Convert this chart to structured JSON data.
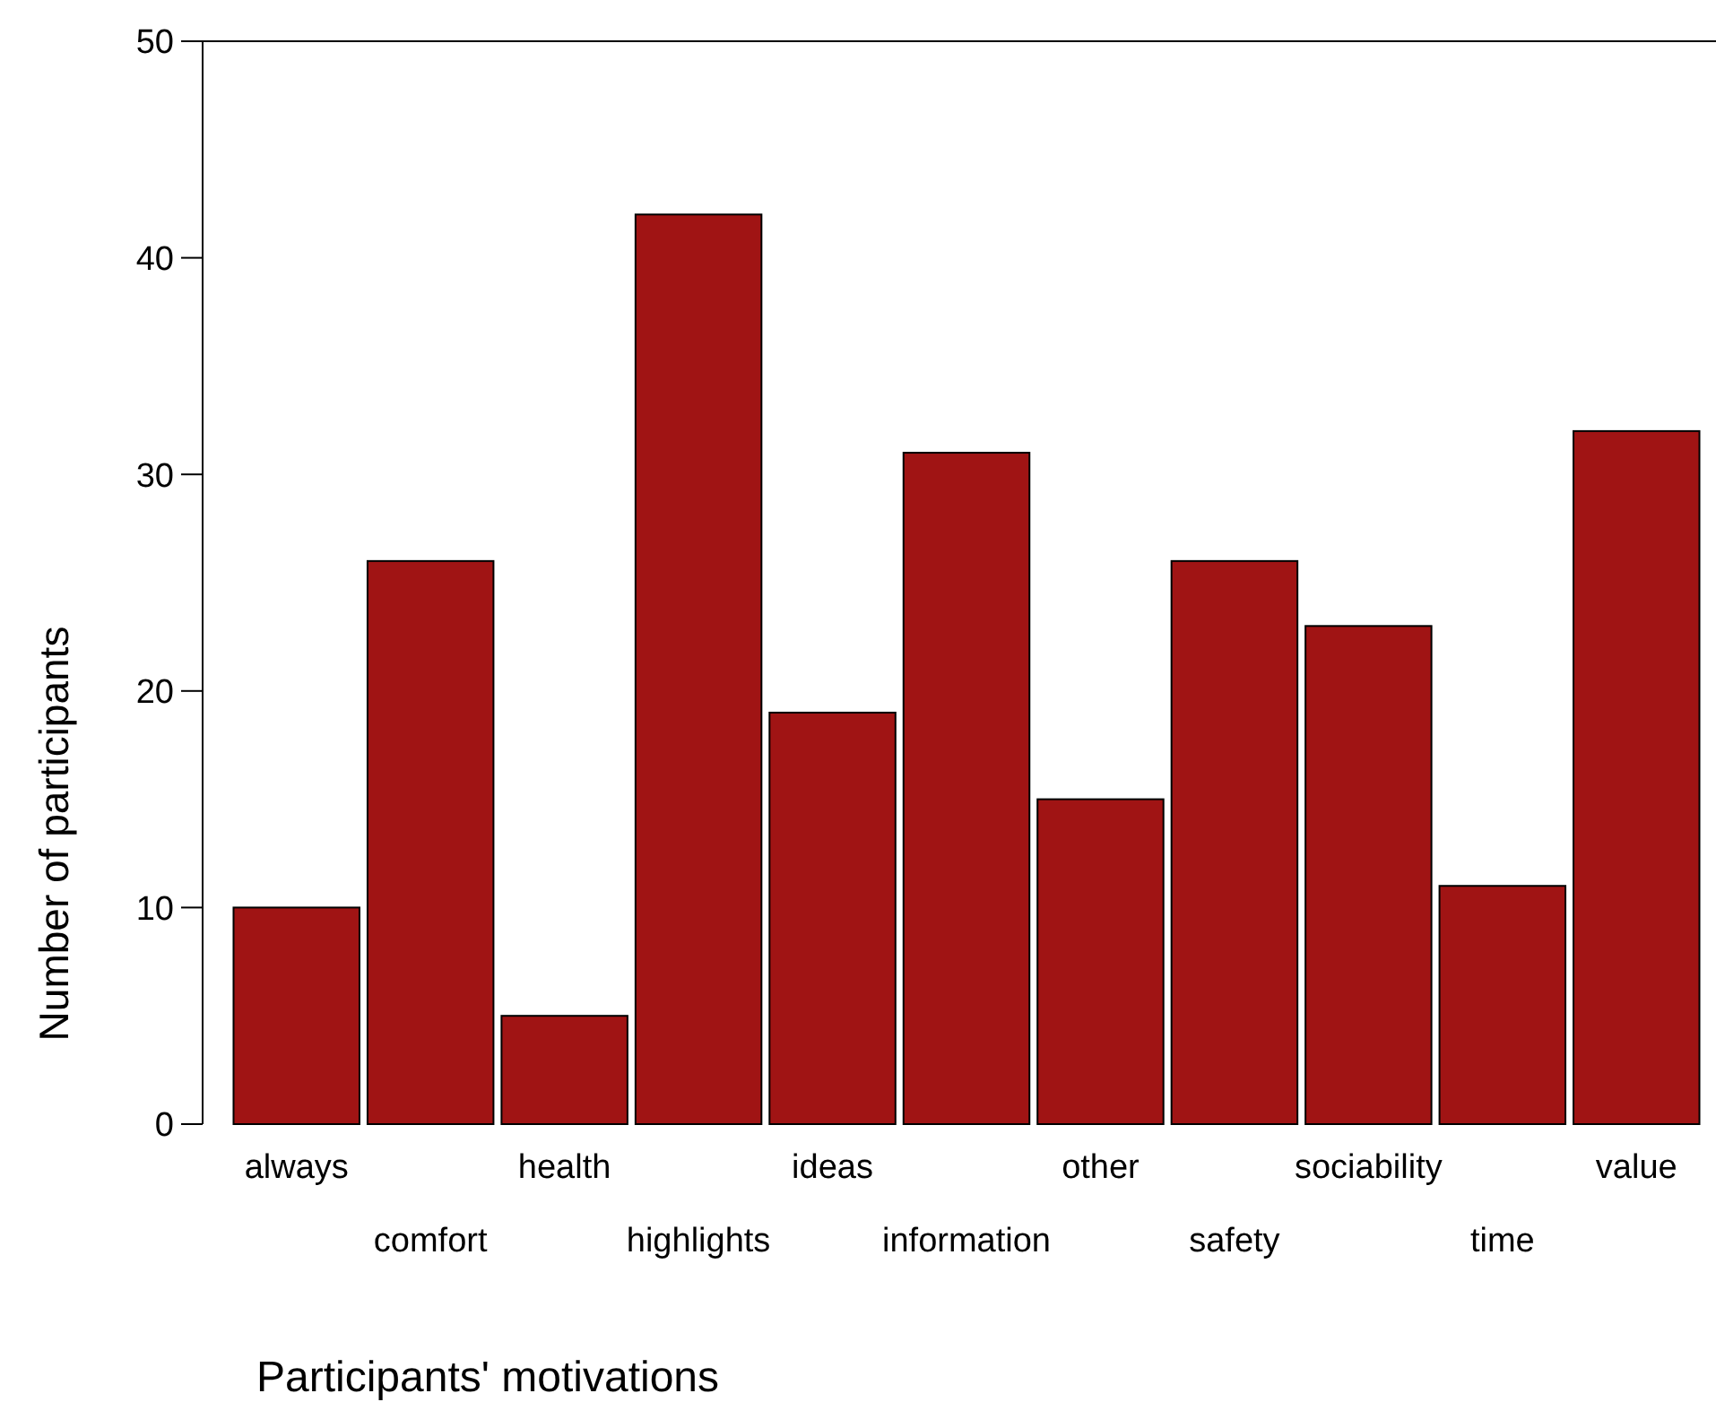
{
  "chart_data": {
    "type": "bar",
    "xlabel": "Participants' motivations",
    "ylabel": "Number of participants",
    "categories": [
      "always",
      "comfort",
      "health",
      "highlights",
      "ideas",
      "information",
      "other",
      "safety",
      "sociability",
      "time",
      "value"
    ],
    "values": [
      10,
      26,
      5,
      42,
      19,
      31,
      15,
      26,
      23,
      11,
      32
    ],
    "color": "#a01414",
    "ylim": [
      0,
      50
    ],
    "yticks": [
      0,
      10,
      20,
      30,
      40,
      50
    ],
    "grid": false
  }
}
